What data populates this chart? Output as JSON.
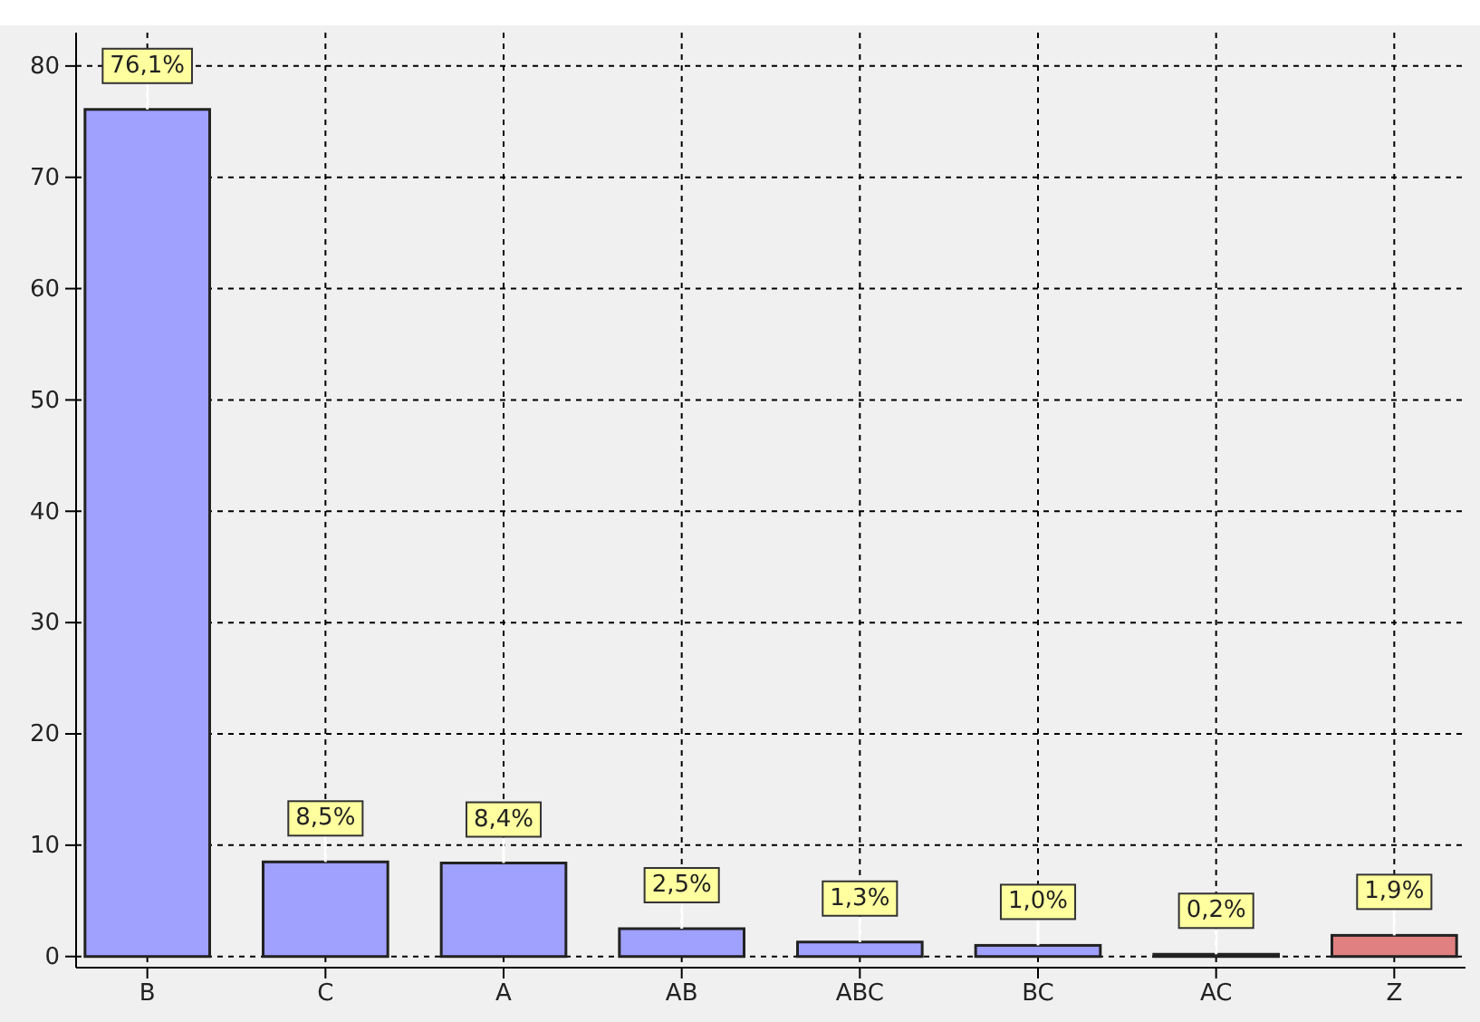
{
  "chart_data": {
    "type": "bar",
    "categories": [
      "B",
      "C",
      "A",
      "AB",
      "ABC",
      "BC",
      "AC",
      "Z"
    ],
    "values": [
      76.1,
      8.5,
      8.4,
      2.5,
      1.3,
      1.0,
      0.2,
      1.9
    ],
    "colors": [
      "#a0a0ff",
      "#a0a0ff",
      "#a0a0ff",
      "#a0a0ff",
      "#a0a0ff",
      "#a0a0ff",
      "#a0a0ff",
      "#e08080"
    ],
    "value_labels": [
      "76,1%",
      "8,5%",
      "8,4%",
      "2,5%",
      "1,3%",
      "1,0%",
      "0,2%",
      "1,9%"
    ],
    "ylim": [
      -1,
      83
    ],
    "yticks": [
      0,
      10,
      20,
      30,
      40,
      50,
      60,
      70,
      80
    ],
    "grid": true
  }
}
